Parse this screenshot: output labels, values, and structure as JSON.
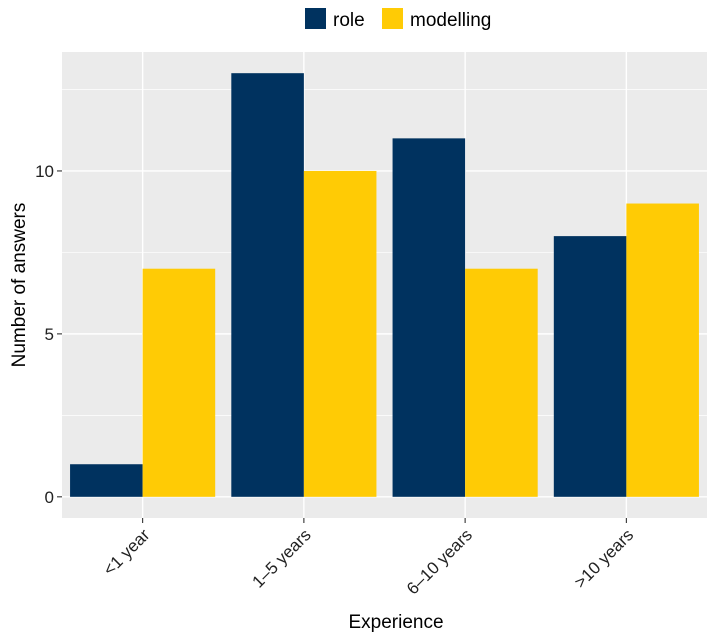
{
  "chart_data": {
    "type": "bar",
    "title": "",
    "xlabel": "Experience",
    "ylabel": "Number of answers",
    "categories": [
      "<1 year",
      "1–5 years",
      "6–10 years",
      ">10 years"
    ],
    "series": [
      {
        "name": "role",
        "color": "#00325f",
        "values": [
          1,
          13,
          11,
          8
        ]
      },
      {
        "name": "modelling",
        "color": "#ffcb05",
        "values": [
          7,
          10,
          7,
          9
        ]
      }
    ],
    "ylim": [
      -0.65,
      13.65
    ],
    "yticks": [
      0,
      5,
      10
    ],
    "grid": true,
    "legend_position": "top",
    "panel_background": "#ebebeb"
  }
}
